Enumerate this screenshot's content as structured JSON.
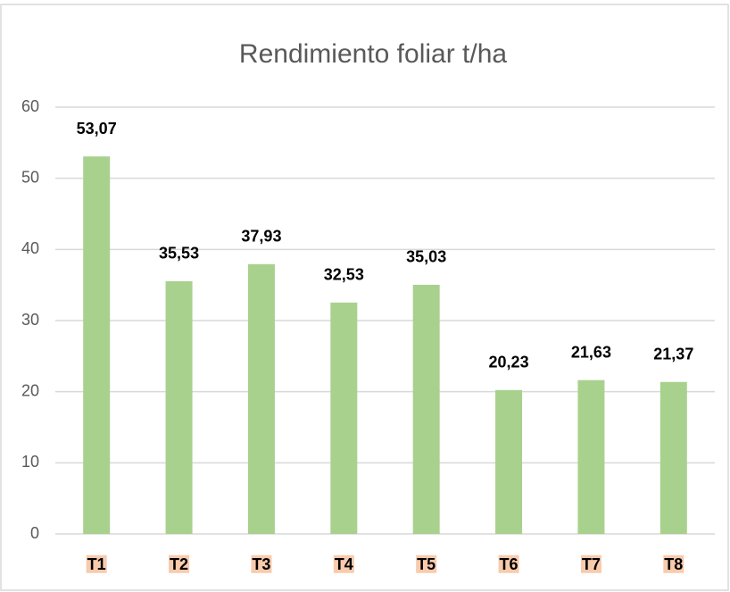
{
  "chart_data": {
    "type": "bar",
    "title": "Rendimiento foliar t/ha",
    "categories": [
      "T1",
      "T2",
      "T3",
      "T4",
      "T5",
      "T6",
      "T7",
      "T8"
    ],
    "values": [
      53.07,
      35.53,
      37.93,
      32.53,
      35.03,
      20.23,
      21.63,
      21.37
    ],
    "value_labels": [
      "53,07",
      "35,53",
      "37,93",
      "32,53",
      "35,03",
      "20,23",
      "21,63",
      "21,37"
    ],
    "color": "#a9d18e",
    "ylim": [
      0,
      60
    ],
    "yticks": [
      0,
      10,
      20,
      30,
      40,
      50,
      60
    ],
    "grid": true
  }
}
